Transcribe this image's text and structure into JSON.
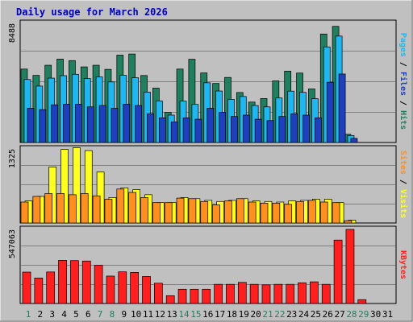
{
  "chart_data": {
    "type": "bar",
    "title": "Daily usage for March 2026",
    "x": [
      "1",
      "2",
      "3",
      "4",
      "5",
      "6",
      "7",
      "8",
      "9",
      "10",
      "11",
      "12",
      "13",
      "14",
      "15",
      "16",
      "17",
      "18",
      "19",
      "20",
      "21",
      "22",
      "23",
      "24",
      "25",
      "26",
      "27",
      "28",
      "29",
      "30",
      "31"
    ],
    "weekend_days": [
      "1",
      "7",
      "8",
      "14",
      "15",
      "21",
      "22",
      "28",
      "29"
    ],
    "colors": {
      "title": "#0000c0",
      "bg": "#c0c0c0",
      "hits": "#1f7f5f",
      "files": "#1fb7f0",
      "pages": "#1f3fbf",
      "visits": "#ffff1f",
      "sites": "#ff8f1f",
      "kbytes": "#ff1f1f",
      "weekday_label": "#000000",
      "weekend_label": "#1f7f5f"
    },
    "panels": [
      {
        "id": "hits",
        "max_label": "8488",
        "ymax": 8488,
        "legend": [
          {
            "text": "Pages",
            "color": "#1fb7f0"
          },
          {
            "text": " / ",
            "color": "#000000"
          },
          {
            "text": "Files",
            "color": "#1f3fbf"
          },
          {
            "text": " / ",
            "color": "#000000"
          },
          {
            "text": "Hits",
            "color": "#1f7f5f"
          }
        ],
        "series": [
          {
            "name": "Hits",
            "values": [
              5360,
              4900,
              5640,
              6090,
              5980,
              5520,
              5640,
              5340,
              6380,
              6460,
              4890,
              3970,
              2200,
              5360,
              6080,
              5080,
              4310,
              4750,
              3650,
              2950,
              3210,
              4500,
              5210,
              5070,
              3910,
              7920,
              8480,
              600,
              0,
              0,
              0
            ]
          },
          {
            "name": "Files",
            "values": [
              4600,
              4120,
              4700,
              4880,
              4980,
              4670,
              4790,
              4420,
              4900,
              4730,
              3680,
              3040,
              2000,
              3020,
              2780,
              4360,
              3760,
              3150,
              3360,
              2700,
              2600,
              3250,
              3750,
              3660,
              3200,
              6980,
              7770,
              510,
              0,
              0,
              0
            ]
          },
          {
            "name": "Pages",
            "values": [
              2500,
              2400,
              2750,
              2800,
              2800,
              2600,
              2700,
              2500,
              2800,
              2700,
              2100,
              1800,
              1500,
              1800,
              1700,
              2500,
              2200,
              1900,
              2000,
              1700,
              1600,
              1900,
              2100,
              2000,
              1800,
              4400,
              5000,
              300,
              0,
              0,
              0
            ]
          }
        ]
      },
      {
        "id": "visits",
        "max_label": "1325",
        "ymax": 1325,
        "legend": [
          {
            "text": "Sites",
            "color": "#ff8f1f"
          },
          {
            "text": " / ",
            "color": "#000000"
          },
          {
            "text": "Visits",
            "color": "#ffff1f"
          }
        ],
        "series": [
          {
            "name": "Visits",
            "values": [
              390,
              470,
              990,
              1300,
              1330,
              1280,
              900,
              450,
              620,
              590,
              500,
              360,
              360,
              450,
              430,
              400,
              380,
              400,
              430,
              390,
              380,
              370,
              390,
              400,
              420,
              420,
              360,
              50,
              0,
              0,
              0
            ]
          },
          {
            "name": "Sites",
            "values": [
              370,
              470,
              520,
              520,
              500,
              520,
              480,
              420,
              600,
              540,
              450,
              360,
              360,
              440,
              430,
              380,
              320,
              390,
              430,
              370,
              350,
              350,
              330,
              380,
              400,
              370,
              360,
              40,
              0,
              0,
              0
            ]
          }
        ]
      },
      {
        "id": "kbytes",
        "max_label": "547063",
        "ymax": 547063,
        "legend": [
          {
            "text": "KBytes",
            "color": "#ff1f1f"
          }
        ],
        "series": [
          {
            "name": "KBytes",
            "values": [
              229000,
              186000,
              230000,
              315000,
              313000,
              310000,
              279000,
              200000,
              231000,
              227000,
              197000,
              148000,
              57000,
              104000,
              104000,
              104000,
              140000,
              140000,
              154000,
              140000,
              136000,
              140000,
              140000,
              151000,
              158000,
              140000,
              463000,
              541000,
              28000,
              0,
              0
            ]
          }
        ]
      }
    ]
  }
}
